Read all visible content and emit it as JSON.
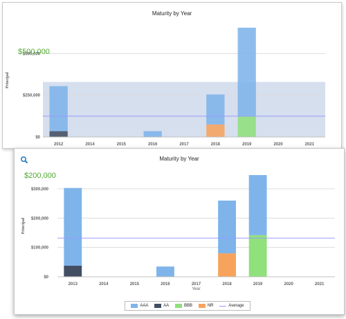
{
  "panels": [
    {
      "title": "Maturity by Year",
      "annotation": "$500,000",
      "ylabel": "Principal",
      "y_ticks": [
        "$0",
        "$250,000",
        "$500,000"
      ]
    },
    {
      "title": "Maturity by Year",
      "annotation": "$200,000",
      "ylabel": "Principal",
      "xlabel": "Year",
      "y_ticks": [
        "$0",
        "$100,000",
        "$200,000",
        "$300,000"
      ]
    }
  ],
  "legend": [
    {
      "label": "AAA",
      "color": "#7eb4ea"
    },
    {
      "label": "AA",
      "color": "#434e63"
    },
    {
      "label": "BBB",
      "color": "#90e07c"
    },
    {
      "label": "NR",
      "color": "#f7a35c"
    },
    {
      "label": "Average",
      "color": "#9a9aff"
    }
  ],
  "colors": {
    "annotation": "#4caa2e"
  },
  "chart_data": [
    {
      "type": "bar",
      "stacked": true,
      "title": "Maturity by Year",
      "xlabel": "",
      "ylabel": "Principal",
      "categories": [
        "2012",
        "2014",
        "2015",
        "2016",
        "2017",
        "2018",
        "2019",
        "2020",
        "2021"
      ],
      "series": [
        {
          "name": "AAA",
          "color": "#7eb4ea",
          "values": [
            270000,
            0,
            0,
            35000,
            0,
            180000,
            530000,
            0,
            0
          ]
        },
        {
          "name": "AA",
          "color": "#434e63",
          "values": [
            35000,
            0,
            0,
            0,
            0,
            0,
            0,
            0,
            0
          ]
        },
        {
          "name": "BBB",
          "color": "#90e07c",
          "values": [
            0,
            0,
            0,
            0,
            0,
            0,
            125000,
            0,
            0
          ]
        },
        {
          "name": "NR",
          "color": "#f7a35c",
          "values": [
            0,
            0,
            0,
            0,
            0,
            75000,
            0,
            0,
            0
          ]
        }
      ],
      "average": 125000,
      "band": [
        0,
        330000
      ],
      "ylim": [
        0,
        680000
      ],
      "y_ticks": [
        0,
        250000,
        500000
      ],
      "grid": true
    },
    {
      "type": "bar",
      "stacked": true,
      "title": "Maturity by Year",
      "xlabel": "Year",
      "ylabel": "Principal",
      "categories": [
        "2013",
        "2014",
        "2015",
        "2016",
        "2017",
        "2018",
        "2019",
        "2020",
        "2021"
      ],
      "series": [
        {
          "name": "AAA",
          "color": "#7eb4ea",
          "values": [
            265000,
            0,
            0,
            35000,
            0,
            180000,
            205000,
            0,
            0
          ]
        },
        {
          "name": "AA",
          "color": "#434e63",
          "values": [
            38000,
            0,
            0,
            0,
            0,
            0,
            0,
            0,
            0
          ]
        },
        {
          "name": "BBB",
          "color": "#90e07c",
          "values": [
            0,
            0,
            0,
            0,
            0,
            0,
            142000,
            0,
            0
          ]
        },
        {
          "name": "NR",
          "color": "#f7a35c",
          "values": [
            0,
            0,
            0,
            0,
            0,
            80000,
            0,
            0,
            0
          ]
        }
      ],
      "average": 132000,
      "ylim": [
        0,
        347000
      ],
      "y_ticks": [
        0,
        100000,
        200000,
        300000
      ],
      "grid": true,
      "legend_position": "bottom"
    }
  ]
}
